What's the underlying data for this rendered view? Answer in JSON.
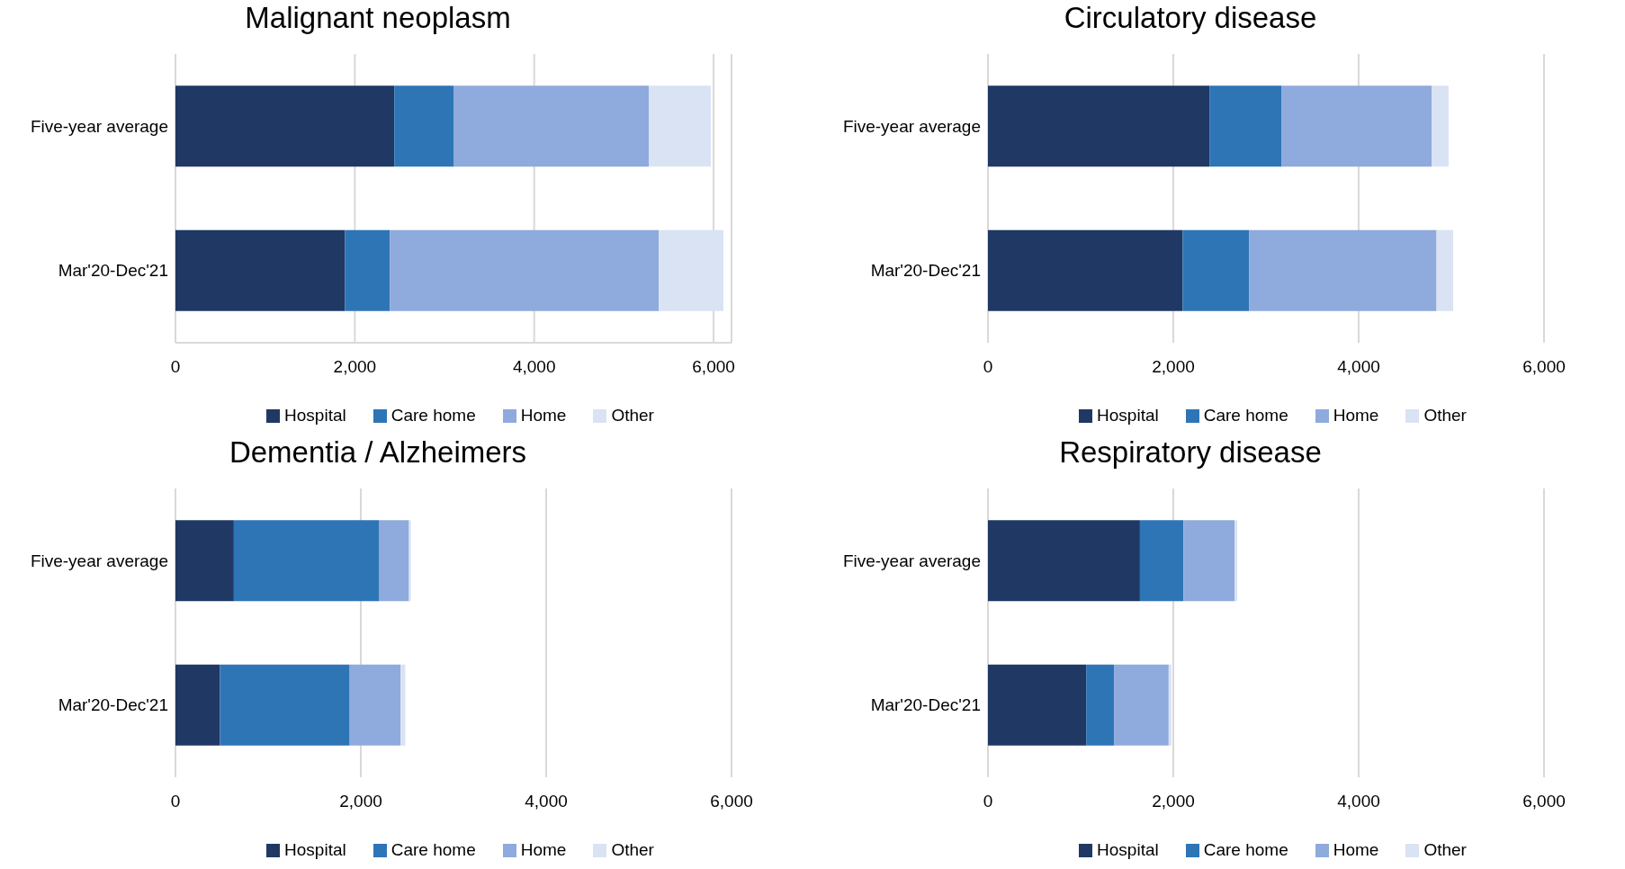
{
  "chart_data": [
    {
      "type": "bar",
      "orientation": "horizontal",
      "stacked": true,
      "title": "Malignant neoplasm",
      "categories": [
        "Five-year average",
        "Mar'20-Dec'21"
      ],
      "series": [
        {
          "name": "Hospital",
          "color": "#203864",
          "values": [
            2440,
            1890
          ]
        },
        {
          "name": "Care home",
          "color": "#2e75b6",
          "values": [
            660,
            500
          ]
        },
        {
          "name": "Home",
          "color": "#8faadc",
          "values": [
            2180,
            3000
          ]
        },
        {
          "name": "Other",
          "color": "#dae3f3",
          "values": [
            690,
            720
          ]
        }
      ],
      "xlim": [
        0,
        6200
      ],
      "xticks": [
        {
          "value": 0,
          "label": "0"
        },
        {
          "value": 2000,
          "label": "2,000"
        },
        {
          "value": 4000,
          "label": "4,000"
        },
        {
          "value": 6000,
          "label": "6,000"
        }
      ],
      "grid": "x",
      "legend": "bottom"
    },
    {
      "type": "bar",
      "orientation": "horizontal",
      "stacked": true,
      "title": "Circulatory disease",
      "categories": [
        "Five-year average",
        "Mar'20-Dec'21"
      ],
      "series": [
        {
          "name": "Hospital",
          "color": "#203864",
          "values": [
            2390,
            2100
          ]
        },
        {
          "name": "Care home",
          "color": "#2e75b6",
          "values": [
            780,
            720
          ]
        },
        {
          "name": "Home",
          "color": "#8faadc",
          "values": [
            1620,
            2020
          ]
        },
        {
          "name": "Other",
          "color": "#dae3f3",
          "values": [
            180,
            180
          ]
        }
      ],
      "xlim": [
        0,
        6000
      ],
      "xticks": [
        {
          "value": 0,
          "label": "0"
        },
        {
          "value": 2000,
          "label": "2,000"
        },
        {
          "value": 4000,
          "label": "4,000"
        },
        {
          "value": 6000,
          "label": "6,000"
        }
      ],
      "grid": "x",
      "legend": "bottom"
    },
    {
      "type": "bar",
      "orientation": "horizontal",
      "stacked": true,
      "title": "Dementia / Alzheimers",
      "categories": [
        "Five-year average",
        "Mar'20-Dec'21"
      ],
      "series": [
        {
          "name": "Hospital",
          "color": "#203864",
          "values": [
            630,
            480
          ]
        },
        {
          "name": "Care home",
          "color": "#2e75b6",
          "values": [
            1570,
            1400
          ]
        },
        {
          "name": "Home",
          "color": "#8faadc",
          "values": [
            320,
            550
          ]
        },
        {
          "name": "Other",
          "color": "#dae3f3",
          "values": [
            20,
            50
          ]
        }
      ],
      "xlim": [
        0,
        6000
      ],
      "xticks": [
        {
          "value": 0,
          "label": "0"
        },
        {
          "value": 2000,
          "label": "2,000"
        },
        {
          "value": 4000,
          "label": "4,000"
        },
        {
          "value": 6000,
          "label": "6,000"
        }
      ],
      "grid": "x",
      "legend": "bottom"
    },
    {
      "type": "bar",
      "orientation": "horizontal",
      "stacked": true,
      "title": "Respiratory disease",
      "categories": [
        "Five-year average",
        "Mar'20-Dec'21"
      ],
      "series": [
        {
          "name": "Hospital",
          "color": "#203864",
          "values": [
            1640,
            1060
          ]
        },
        {
          "name": "Care home",
          "color": "#2e75b6",
          "values": [
            470,
            300
          ]
        },
        {
          "name": "Home",
          "color": "#8faadc",
          "values": [
            550,
            590
          ]
        },
        {
          "name": "Other",
          "color": "#dae3f3",
          "values": [
            30,
            30
          ]
        }
      ],
      "xlim": [
        0,
        6000
      ],
      "xticks": [
        {
          "value": 0,
          "label": "0"
        },
        {
          "value": 2000,
          "label": "2,000"
        },
        {
          "value": 4000,
          "label": "4,000"
        },
        {
          "value": 6000,
          "label": "6,000"
        }
      ],
      "grid": "x",
      "legend": "bottom"
    }
  ]
}
